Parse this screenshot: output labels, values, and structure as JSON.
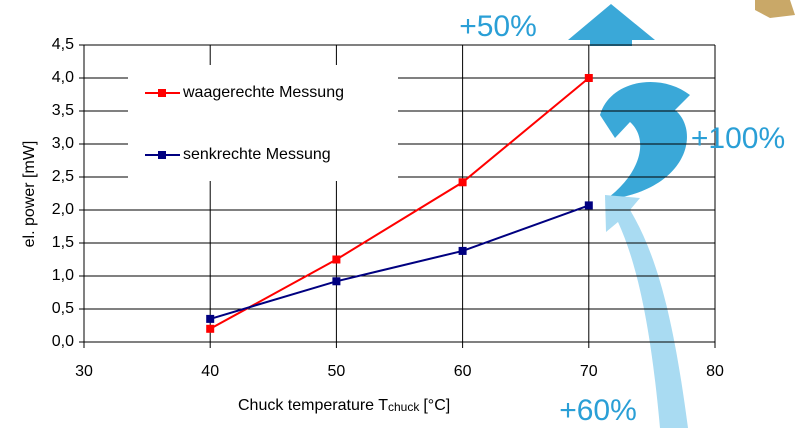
{
  "chart_data": {
    "type": "line",
    "x_label": {
      "main": "Chuck temperature T",
      "sub": "chuck",
      "unit": "[°C]"
    },
    "y_label": "el. power [mW]",
    "x": [
      40,
      50,
      60,
      70
    ],
    "series": [
      {
        "name": "waagerechte Messung",
        "color": "#ff0000",
        "values": [
          0.2,
          1.25,
          2.42,
          4.0
        ]
      },
      {
        "name": "senkrechte Messung",
        "color": "#000080",
        "values": [
          0.35,
          0.92,
          1.38,
          2.07
        ]
      }
    ],
    "xlim": [
      30,
      80
    ],
    "xticks": [
      30,
      40,
      50,
      60,
      70,
      80
    ],
    "ylim": [
      0,
      4.5
    ],
    "yticks": [
      {
        "value": 0,
        "label": "0,0"
      },
      {
        "value": 0.5,
        "label": "0,5"
      },
      {
        "value": 1,
        "label": "1,0"
      },
      {
        "value": 1.5,
        "label": "1,5"
      },
      {
        "value": 2,
        "label": "2,0"
      },
      {
        "value": 2.5,
        "label": "2,5"
      },
      {
        "value": 3,
        "label": "3,0"
      },
      {
        "value": 3.5,
        "label": "3,5"
      },
      {
        "value": 4,
        "label": "4,0"
      },
      {
        "value": 4.5,
        "label": "4,5"
      }
    ],
    "grid": true,
    "annotations": [
      "+50%",
      "+100%",
      "+60%"
    ]
  }
}
